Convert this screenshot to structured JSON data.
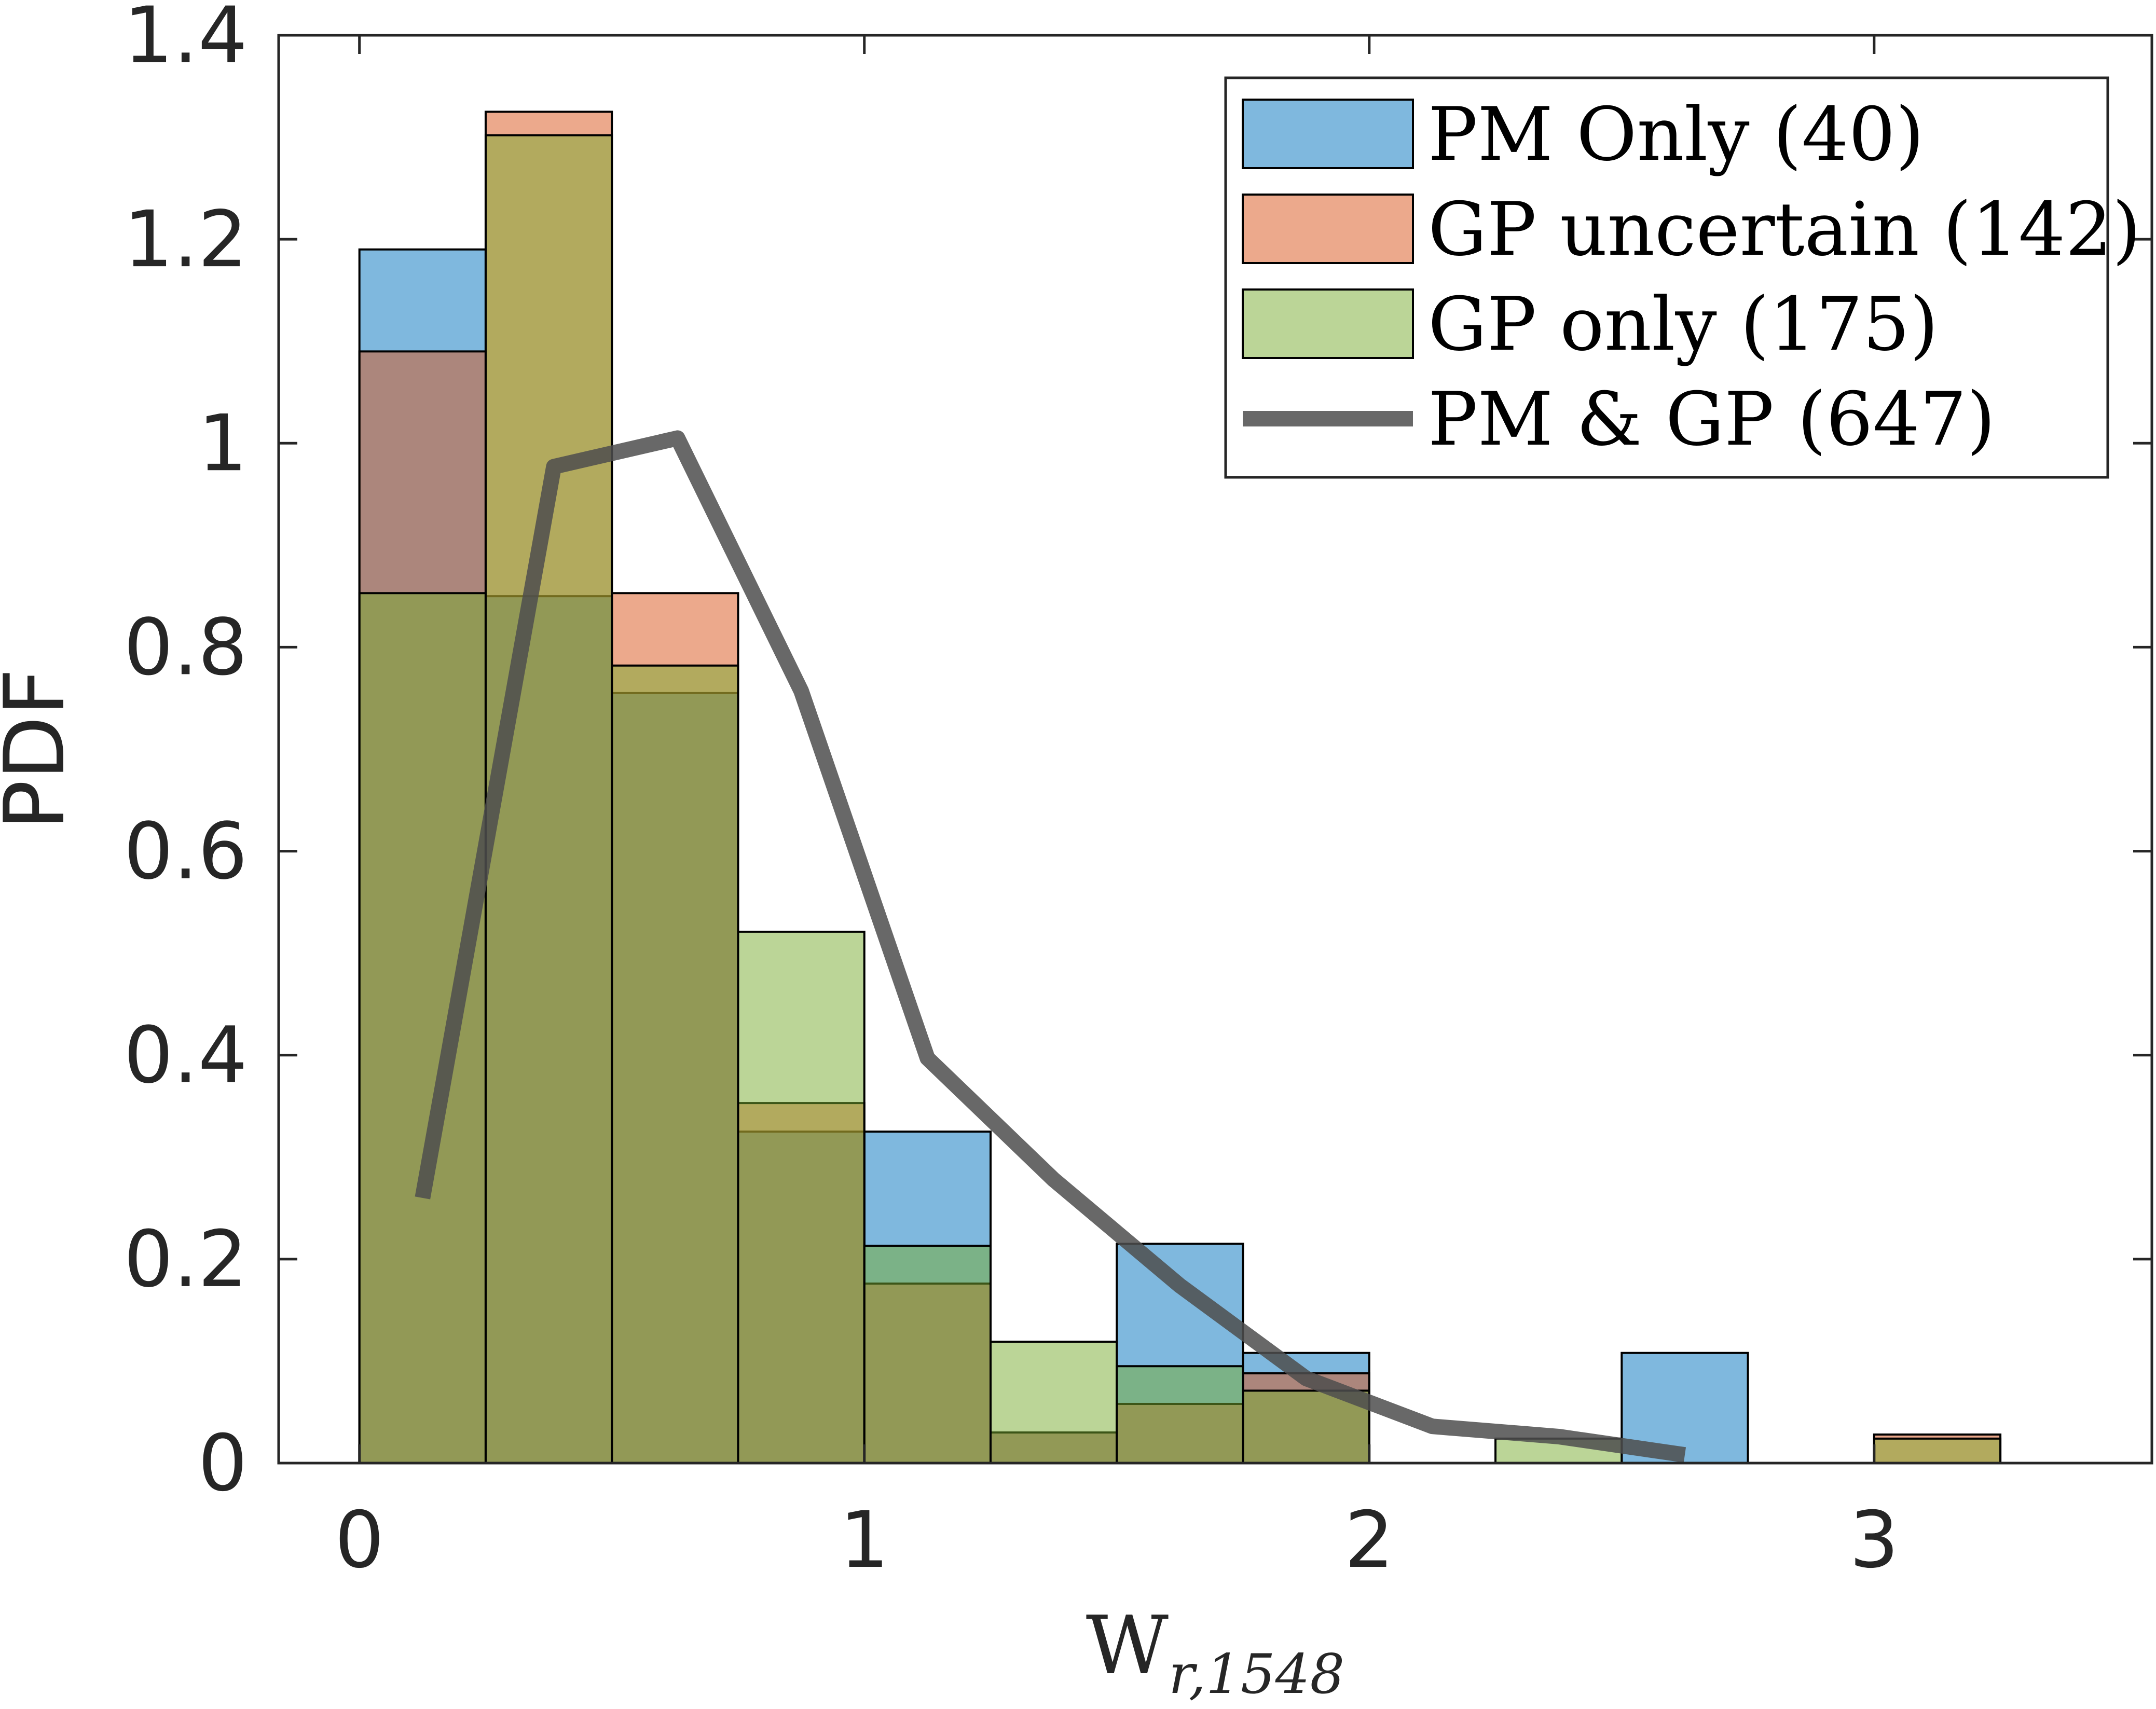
{
  "chart_data": {
    "type": "histogram",
    "xlabel": "W",
    "xlabel_subscript": "r,1548",
    "ylabel": "PDF",
    "xlim": [
      -0.16,
      3.55
    ],
    "ylim": [
      0,
      1.4
    ],
    "xticks": [
      0,
      1,
      2,
      3
    ],
    "xtick_labels": [
      "0",
      "1",
      "2",
      "3"
    ],
    "yticks": [
      0,
      0.2,
      0.4,
      0.6,
      0.8,
      1,
      1.2,
      1.4
    ],
    "ytick_labels": [
      "0",
      "0.2",
      "0.4",
      "0.6",
      "0.8",
      "1",
      "1.2",
      "1.4"
    ],
    "bin_edges": [
      0,
      0.25,
      0.5,
      0.75,
      1.0,
      1.25,
      1.5,
      1.75,
      2.0,
      2.25,
      2.5,
      2.75,
      3.0,
      3.25
    ],
    "series": [
      {
        "name": "PM Only (40)",
        "kind": "bar",
        "color": "#0072BD",
        "values": [
          1.19,
          0.85,
          0.755,
          0.325,
          0.325,
          0.03,
          0.215,
          0.108,
          0,
          0,
          0.108,
          0,
          0
        ]
      },
      {
        "name": "GP uncertain (142)",
        "kind": "bar",
        "color": "#D95319",
        "values": [
          1.09,
          1.325,
          0.853,
          0.353,
          0.176,
          0.03,
          0.058,
          0.088,
          0,
          0,
          0,
          0,
          0.028
        ]
      },
      {
        "name": "GP only (175)",
        "kind": "bar",
        "color": "#77AC30",
        "values": [
          0.853,
          1.302,
          0.782,
          0.521,
          0.213,
          0.119,
          0.095,
          0.071,
          0,
          0.024,
          0,
          0,
          0.024
        ]
      },
      {
        "name": "PM & GP (647)",
        "kind": "line",
        "color": "#4d4d4d",
        "x": [
          0.125,
          0.385,
          0.63,
          0.875,
          1.125,
          1.375,
          1.625,
          1.875,
          2.125,
          2.375,
          2.625
        ],
        "y": [
          0.26,
          0.977,
          1.005,
          0.757,
          0.397,
          0.278,
          0.174,
          0.083,
          0.036,
          0.026,
          0.008
        ]
      }
    ],
    "legend_position": "top-right"
  },
  "colors": {
    "axis": "#262626",
    "bar_edge": "#000000"
  }
}
